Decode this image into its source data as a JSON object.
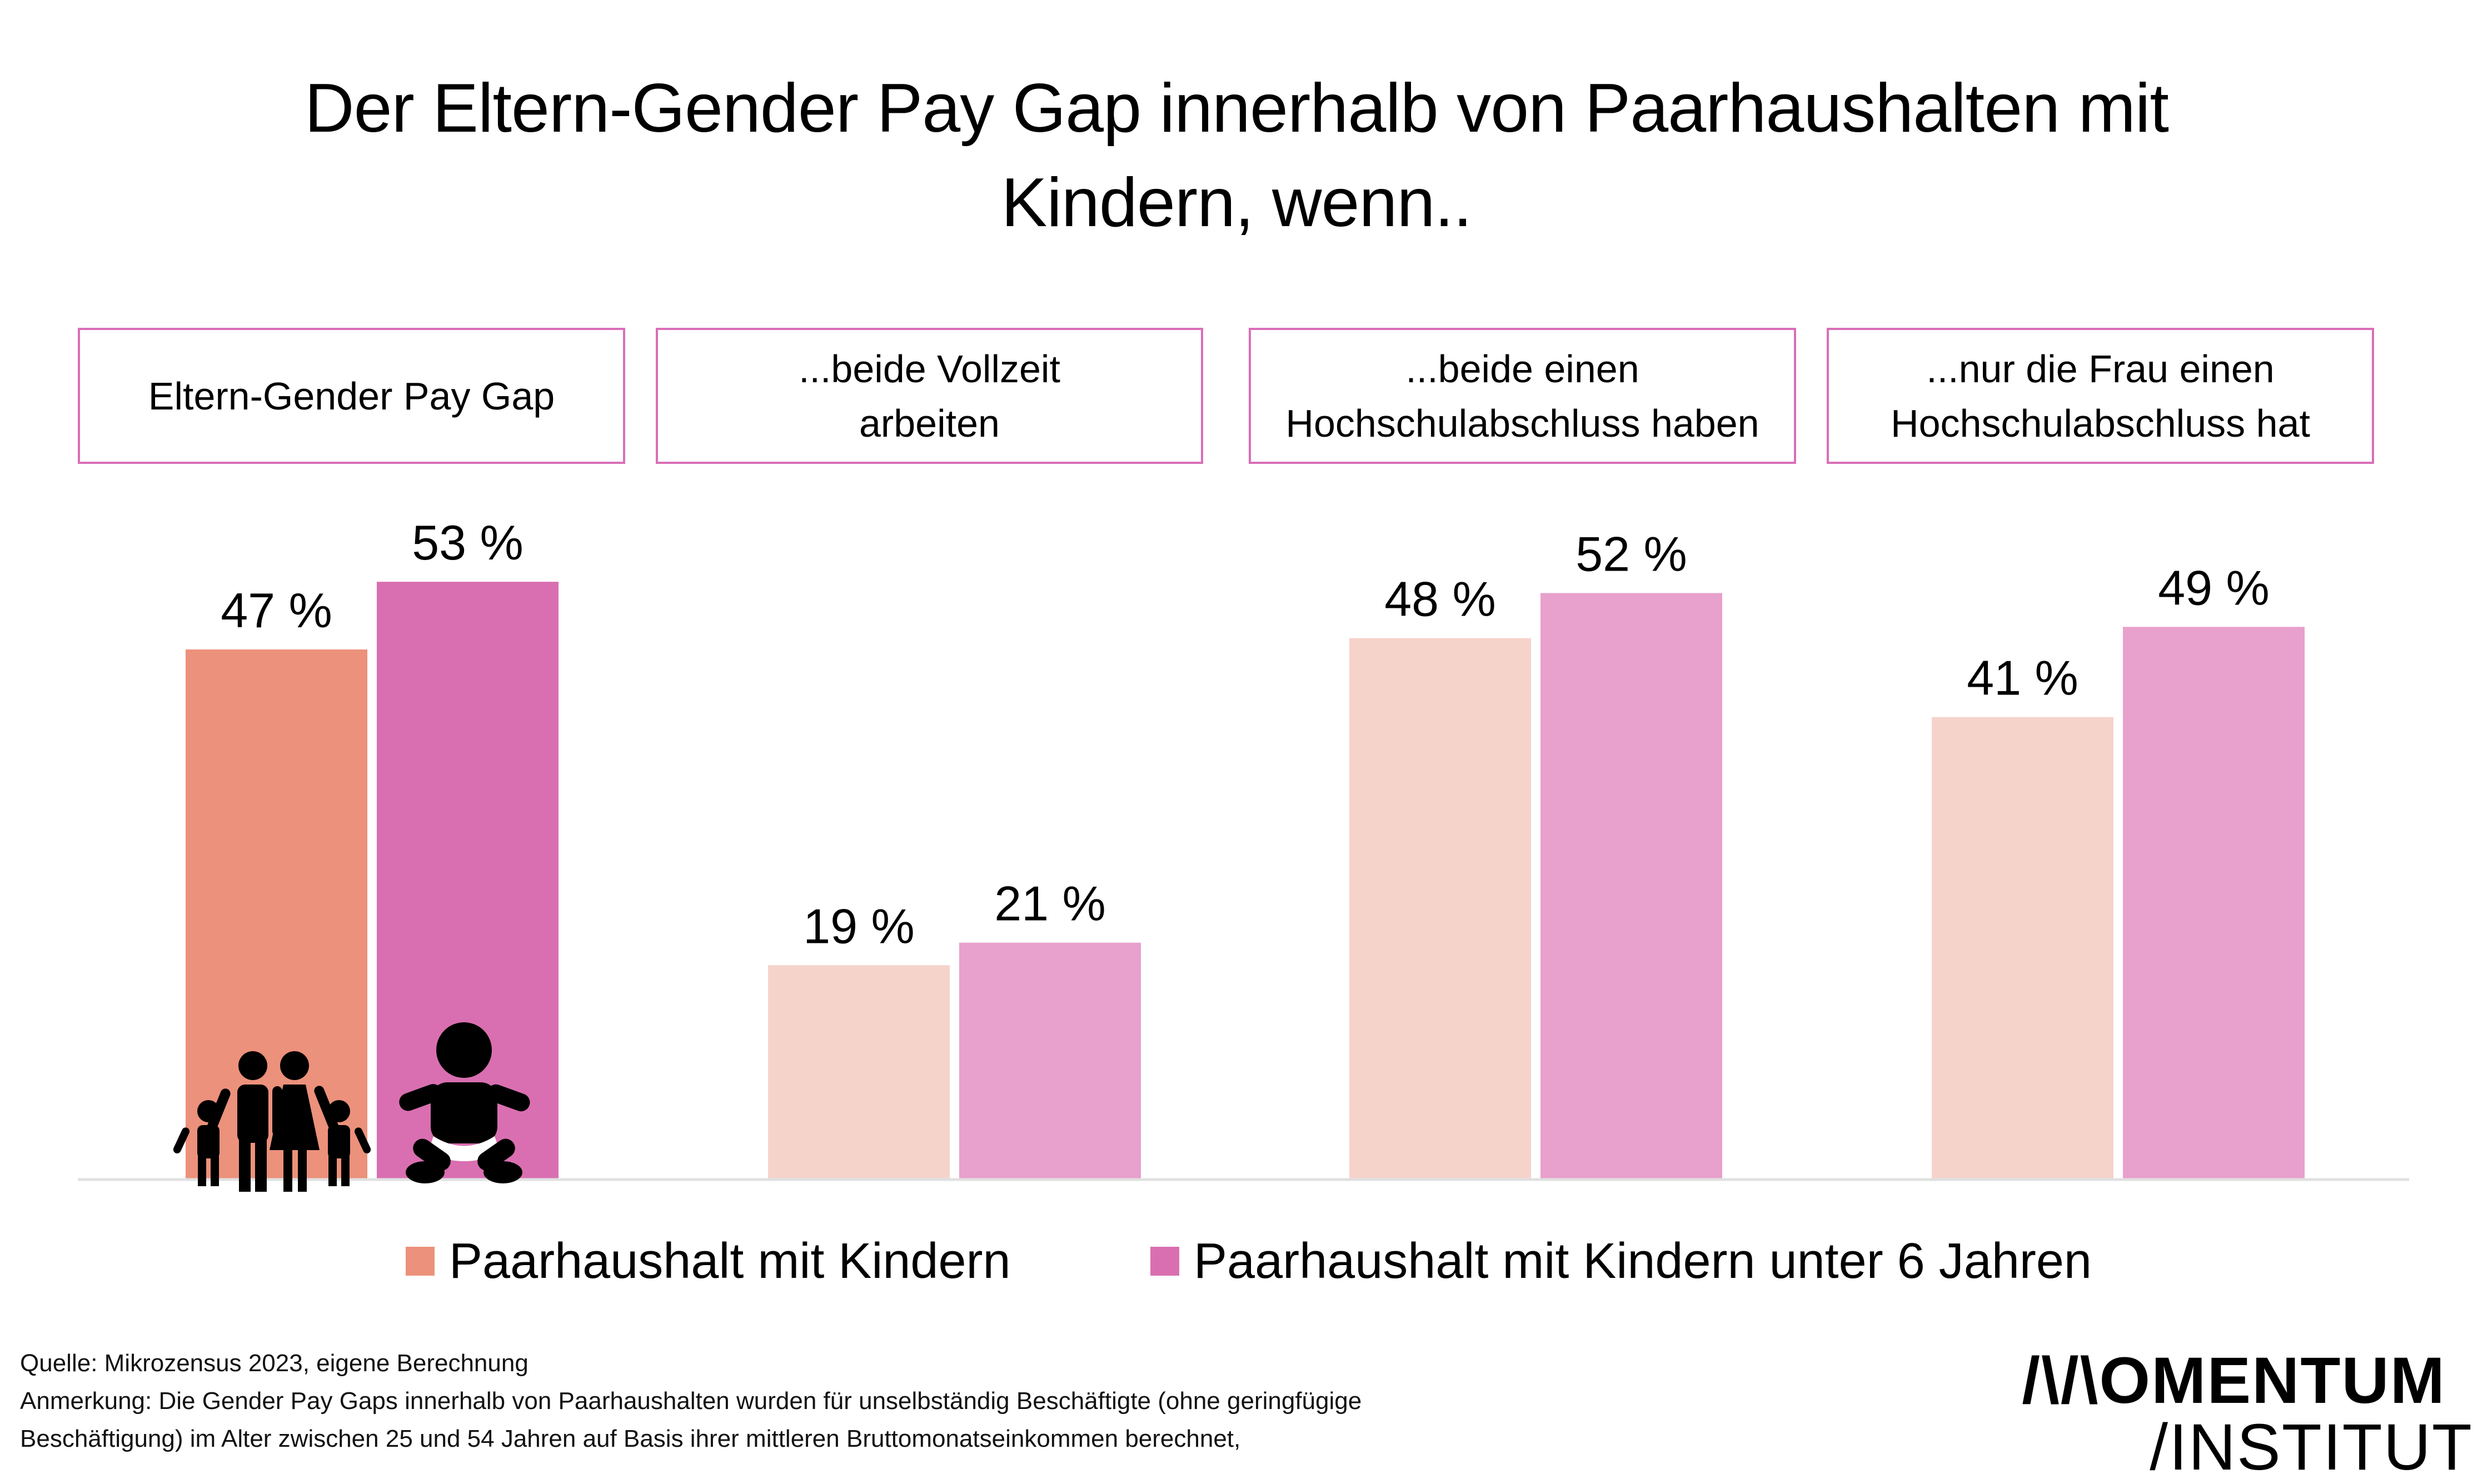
{
  "title_line1": "Der Eltern-Gender Pay Gap innerhalb von Paarhaushalten mit",
  "title_line2": "Kindern, wenn..",
  "colors": {
    "group1_series1": "#ec917b",
    "group1_series2": "#d96fb0",
    "light_series1": "#f6d3ca",
    "light_series2": "#e8a0cc",
    "box_border": "#d96fb8",
    "baseline": "#e0e0e0"
  },
  "chart_data": {
    "type": "bar",
    "title": "Der Eltern-Gender Pay Gap innerhalb von Paarhaushalten mit Kindern, wenn..",
    "categories": [
      "Eltern-Gender Pay Gap",
      "...beide Vollzeit\narbeiten",
      "...beide einen\nHochschulabschluss haben",
      "...nur die Frau einen\nHochschulabschluss hat"
    ],
    "series": [
      {
        "name": "Paarhaushalt mit Kindern",
        "values": [
          47,
          19,
          48,
          41
        ]
      },
      {
        "name": "Paarhaushalt mit Kindern unter 6 Jahren",
        "values": [
          53,
          21,
          52,
          49
        ]
      }
    ],
    "value_labels": [
      [
        "47 %",
        "19 %",
        "48 %",
        "41 %"
      ],
      [
        "53 %",
        "21 %",
        "52 %",
        "49 %"
      ]
    ],
    "xlabel": "",
    "ylabel": "",
    "ylim": [
      0,
      100
    ],
    "grid": false,
    "legend_position": "bottom"
  },
  "legend": {
    "item1": "Paarhaushalt mit Kindern",
    "item2": "Paarhaushalt mit Kindern unter 6 Jahren"
  },
  "icons": {
    "family": "family-icon",
    "baby": "baby-icon"
  },
  "notes": {
    "source": "Quelle: Mikrozensus 2023, eigene Berechnung",
    "remark_line1": "Anmerkung: Die Gender Pay Gaps innerhalb von Paarhaushalten wurden für unselbständig Beschäftigte (ohne geringfügige",
    "remark_line2": "Beschäftigung)  im Alter zwischen 25 und 54 Jahren auf Basis ihrer mittleren Bruttomonatseinkommen berechnet,"
  },
  "logo": {
    "line1": "/\\/\\OMENTUM",
    "line2": "/INSTITUT"
  }
}
